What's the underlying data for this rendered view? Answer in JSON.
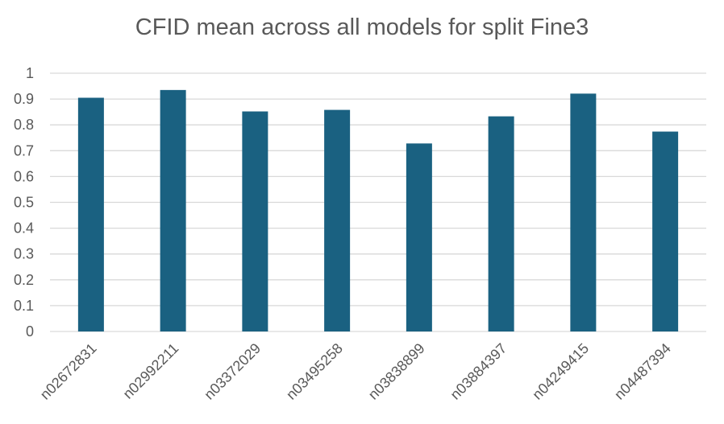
{
  "chart_data": {
    "type": "bar",
    "title": "CFID mean across all models for split Fine3",
    "xlabel": "",
    "ylabel": "",
    "categories": [
      "n02672831",
      "n02992211",
      "n03372029",
      "n03495258",
      "n03838899",
      "n03884397",
      "n04249415",
      "n04487394"
    ],
    "values": [
      0.905,
      0.935,
      0.852,
      0.858,
      0.728,
      0.833,
      0.921,
      0.774
    ],
    "ylim": [
      0,
      1
    ],
    "yticks": [
      "0",
      "0.1",
      "0.2",
      "0.3",
      "0.4",
      "0.5",
      "0.6",
      "0.7",
      "0.8",
      "0.9",
      "1"
    ],
    "grid": true,
    "legend": "none",
    "bar_color": "#1a6181",
    "grid_color": "#d9d9d9",
    "text_color": "#595959"
  }
}
